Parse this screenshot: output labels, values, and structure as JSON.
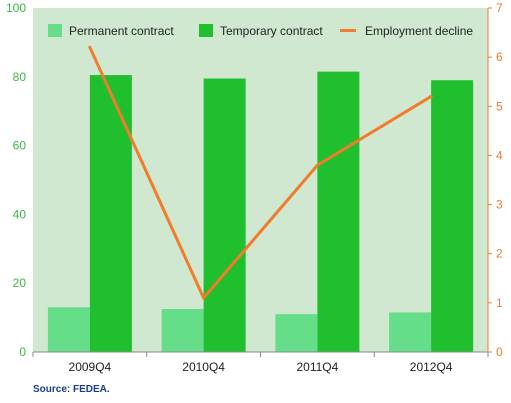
{
  "chart_data": {
    "type": "bar",
    "categories": [
      "2009Q4",
      "2010Q4",
      "2011Q4",
      "2012Q4"
    ],
    "series": [
      {
        "name": "Permanent contract",
        "type": "bar",
        "axis": "left",
        "color": "#66dd88",
        "values": [
          13,
          12.5,
          11,
          11.5
        ]
      },
      {
        "name": "Temporary contract",
        "type": "bar",
        "axis": "left",
        "color": "#1fbf2e",
        "values": [
          80.5,
          79.5,
          81.5,
          79
        ]
      },
      {
        "name": "Employment decline",
        "type": "line",
        "axis": "right",
        "color": "#f07c2c",
        "values": [
          6.2,
          1.1,
          3.8,
          5.2
        ]
      }
    ],
    "y_left": {
      "min": 0,
      "max": 100,
      "ticks": [
        "0",
        "20",
        "40",
        "60",
        "80",
        "100"
      ],
      "color": "#3bb54a"
    },
    "y_right": {
      "min": 0,
      "max": 7,
      "ticks": [
        "0",
        "1",
        "2",
        "3",
        "4",
        "5",
        "6",
        "7"
      ],
      "color": "#f07c2c"
    },
    "background": "#cfe8cf",
    "grid": false,
    "legend_position": "top",
    "source": "Source: FEDEA."
  }
}
